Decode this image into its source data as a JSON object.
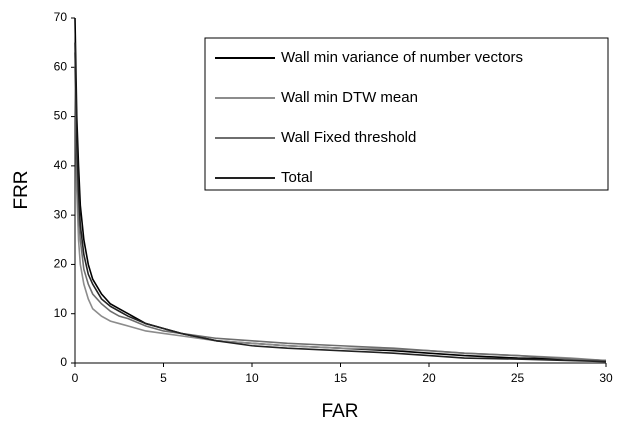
{
  "chart_data": {
    "type": "line",
    "x_label": "FAR",
    "y_label": "FRR",
    "x": [
      0,
      0.1,
      0.2,
      0.3,
      0.5,
      0.75,
      1,
      1.5,
      2,
      2.5,
      3,
      4,
      5,
      6,
      8,
      10,
      12,
      15,
      18,
      20,
      22,
      25,
      28,
      30
    ],
    "series": [
      {
        "name": "Wall min variance of number vectors",
        "color": "#000000",
        "values": [
          70,
          50,
          40,
          32,
          25,
          20,
          17,
          14,
          12,
          11,
          10,
          8,
          7,
          6,
          4.5,
          4,
          3.5,
          3,
          2.5,
          2,
          1.5,
          1,
          0.8,
          0.5
        ]
      },
      {
        "name": "Wall min DTW mean",
        "color": "#8c8c8c",
        "values": [
          60,
          35,
          25,
          20,
          16,
          13,
          11,
          9.5,
          8.5,
          8,
          7.5,
          6.5,
          6,
          5.5,
          4.5,
          4,
          3.5,
          3,
          2.8,
          2.5,
          2,
          1.5,
          1,
          0.5
        ]
      },
      {
        "name": "Wall Fixed threshold",
        "color": "#6e6e6e",
        "values": [
          63,
          40,
          30,
          25,
          19,
          16,
          14,
          12,
          10.5,
          9.5,
          9,
          7.5,
          6.5,
          6,
          5,
          4.5,
          4,
          3.5,
          3,
          2.5,
          2,
          1.5,
          0.8,
          0.5
        ]
      },
      {
        "name": "Total",
        "color": "#222222",
        "values": [
          65,
          45,
          35,
          28,
          22,
          18,
          16,
          13,
          11.5,
          10.5,
          9.5,
          8,
          7,
          6,
          4.5,
          3.5,
          3,
          2.5,
          2,
          1.5,
          1,
          0.8,
          0.5,
          0.3
        ]
      }
    ],
    "xlim": [
      0,
      30
    ],
    "xticks": [
      0,
      5,
      10,
      15,
      20,
      25,
      30
    ],
    "ylim": [
      0,
      70
    ],
    "yticks": [
      0,
      10,
      20,
      30,
      40,
      50,
      60,
      70
    ],
    "grid": false,
    "legend_position": "upper right"
  }
}
